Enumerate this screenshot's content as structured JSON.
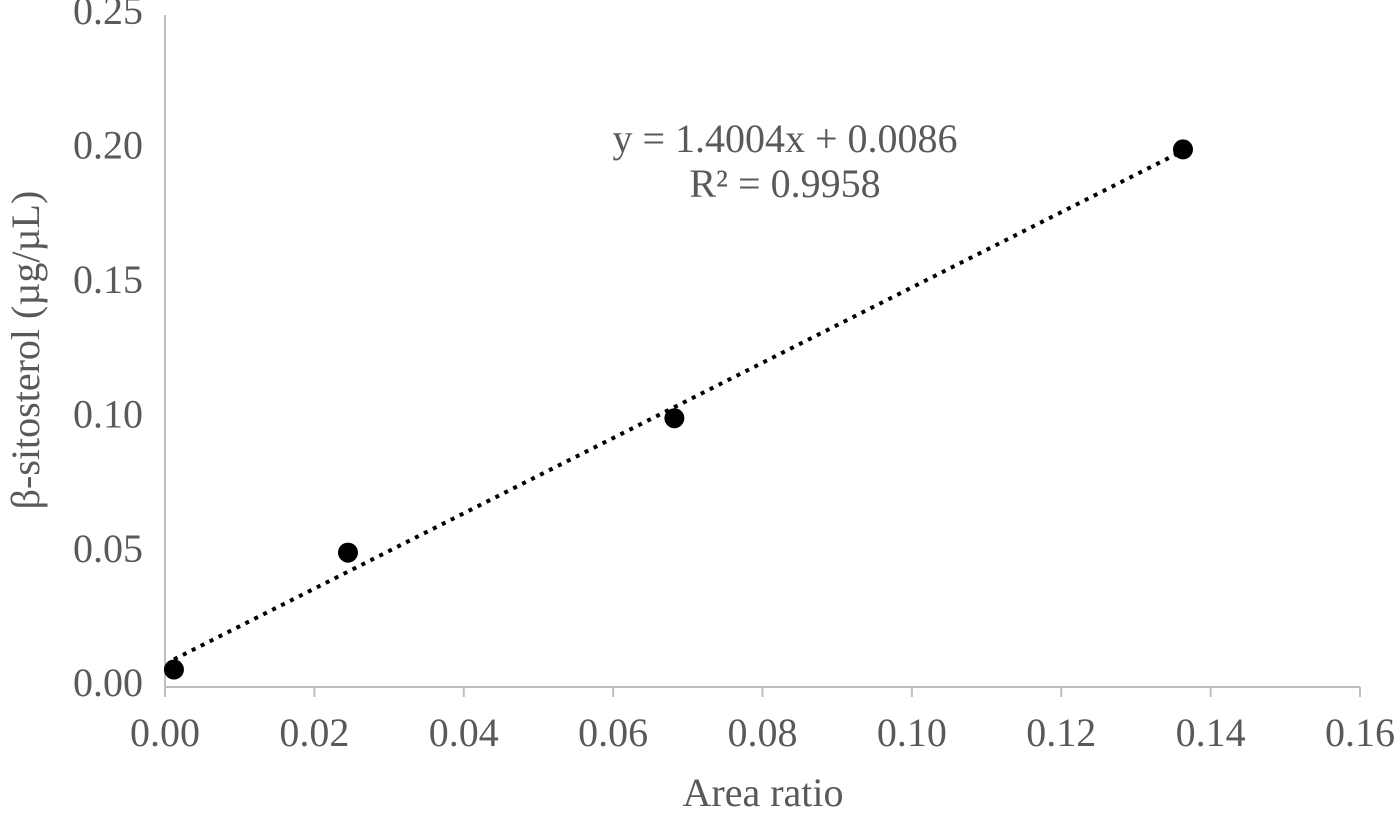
{
  "chart_data": {
    "type": "scatter",
    "x_label": "Area ratio",
    "y_label": "β-sitosterol (µg/µL)",
    "x": [
      0.0012,
      0.0245,
      0.0682,
      0.1363
    ],
    "values": [
      0.0065,
      0.05,
      0.1,
      0.2
    ],
    "color": "#000000",
    "xlim": [
      0,
      0.16
    ],
    "ylim": [
      0,
      0.25
    ],
    "xticks": [
      {
        "value": 0,
        "label": "0.00"
      },
      0.02,
      0.04,
      0.06,
      0.08,
      {
        "value": 0.1,
        "label": "0.10"
      },
      0.12,
      0.14,
      0.16
    ],
    "yticks": [
      {
        "value": 0,
        "label": "0.00"
      },
      0.05,
      {
        "value": 0.1,
        "label": "0.10"
      },
      0.15,
      {
        "value": 0.2,
        "label": "0.20"
      },
      0.25
    ],
    "grid": false,
    "trendline": {
      "equation": "y = 1.4004x + 0.0086",
      "r2_label": "R² = 0.9958",
      "slope": 1.4004,
      "intercept": 0.0086,
      "style": "dotted"
    }
  }
}
